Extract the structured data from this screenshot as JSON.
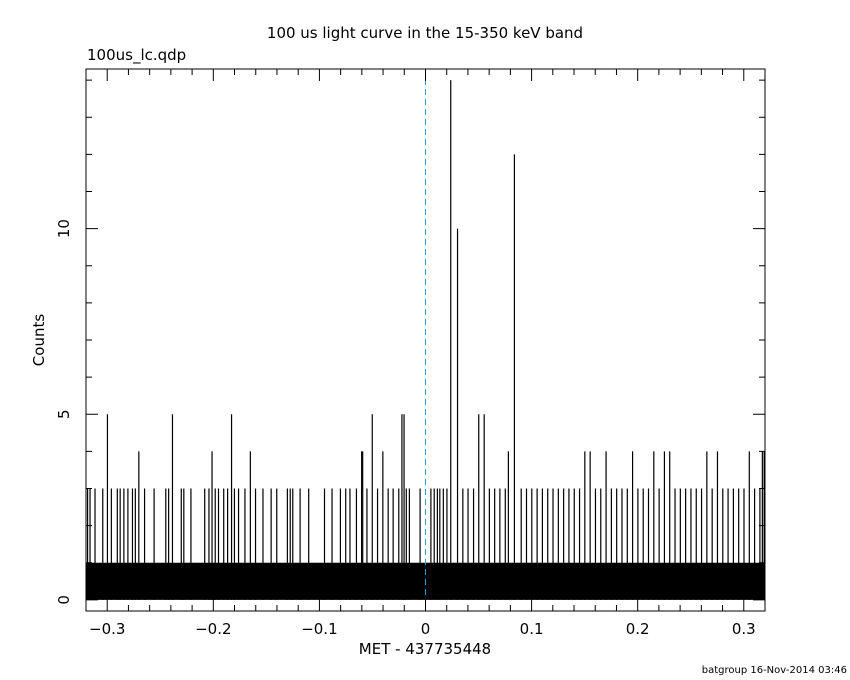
{
  "chart_data": {
    "type": "bar",
    "title": "100 us light curve in the 15-350 keV band",
    "file_label": "100us_lc.qdp",
    "xlabel": "MET - 437735448",
    "ylabel": "Counts",
    "footer": "batgroup 16-Nov-2014 03:46",
    "xlim": [
      -0.32,
      0.32
    ],
    "ylim": [
      -0.3,
      14.3
    ],
    "bin_width": 0.0001,
    "x_ticks": [
      {
        "value": -0.3,
        "label": "−0.3"
      },
      {
        "value": -0.2,
        "label": "−0.2"
      },
      {
        "value": -0.1,
        "label": "−0.1"
      },
      {
        "value": 0,
        "label": "0"
      },
      {
        "value": 0.1,
        "label": "0.1"
      },
      {
        "value": 0.2,
        "label": "0.2"
      },
      {
        "value": 0.3,
        "label": "0.3"
      }
    ],
    "y_ticks": [
      {
        "value": 0,
        "label": "0"
      },
      {
        "value": 5,
        "label": "5"
      },
      {
        "value": 10,
        "label": "10"
      }
    ],
    "reference_line": {
      "x": 0,
      "style": "dashed",
      "color": "#2a9fd6"
    },
    "baseline_counts": 1,
    "series": [
      {
        "points": [
          {
            "x": -0.3185,
            "y": 3
          },
          {
            "x": -0.3162,
            "y": 3
          },
          {
            "x": -0.3115,
            "y": 3
          },
          {
            "x": -0.3042,
            "y": 3
          },
          {
            "x": -0.2998,
            "y": 5
          },
          {
            "x": -0.2961,
            "y": 3
          },
          {
            "x": -0.2905,
            "y": 3
          },
          {
            "x": -0.2878,
            "y": 3
          },
          {
            "x": -0.2843,
            "y": 3
          },
          {
            "x": -0.2805,
            "y": 3
          },
          {
            "x": -0.2762,
            "y": 3
          },
          {
            "x": -0.2735,
            "y": 3
          },
          {
            "x": -0.2702,
            "y": 4
          },
          {
            "x": -0.2648,
            "y": 3
          },
          {
            "x": -0.2558,
            "y": 3
          },
          {
            "x": -0.2448,
            "y": 3
          },
          {
            "x": -0.2421,
            "y": 3
          },
          {
            "x": -0.2385,
            "y": 5
          },
          {
            "x": -0.2302,
            "y": 3
          },
          {
            "x": -0.2278,
            "y": 3
          },
          {
            "x": -0.2211,
            "y": 3
          },
          {
            "x": -0.2081,
            "y": 3
          },
          {
            "x": -0.2041,
            "y": 3
          },
          {
            "x": -0.2012,
            "y": 4
          },
          {
            "x": -0.1982,
            "y": 3
          },
          {
            "x": -0.1951,
            "y": 3
          },
          {
            "x": -0.1902,
            "y": 3
          },
          {
            "x": -0.1865,
            "y": 3
          },
          {
            "x": -0.1828,
            "y": 5
          },
          {
            "x": -0.1801,
            "y": 3
          },
          {
            "x": -0.1762,
            "y": 3
          },
          {
            "x": -0.1702,
            "y": 3
          },
          {
            "x": -0.1651,
            "y": 4
          },
          {
            "x": -0.1602,
            "y": 3
          },
          {
            "x": -0.1532,
            "y": 3
          },
          {
            "x": -0.1455,
            "y": 3
          },
          {
            "x": -0.1402,
            "y": 3
          },
          {
            "x": -0.1302,
            "y": 3
          },
          {
            "x": -0.1275,
            "y": 3
          },
          {
            "x": -0.1251,
            "y": 3
          },
          {
            "x": -0.1182,
            "y": 3
          },
          {
            "x": -0.1101,
            "y": 3
          },
          {
            "x": -0.0952,
            "y": 3
          },
          {
            "x": -0.0881,
            "y": 3
          },
          {
            "x": -0.0802,
            "y": 3
          },
          {
            "x": -0.0752,
            "y": 3
          },
          {
            "x": -0.0712,
            "y": 3
          },
          {
            "x": -0.0651,
            "y": 3
          },
          {
            "x": -0.0602,
            "y": 4
          },
          {
            "x": -0.0592,
            "y": 4
          },
          {
            "x": -0.0552,
            "y": 3
          },
          {
            "x": -0.0502,
            "y": 5
          },
          {
            "x": -0.0452,
            "y": 3
          },
          {
            "x": -0.0402,
            "y": 4
          },
          {
            "x": -0.0352,
            "y": 3
          },
          {
            "x": -0.0305,
            "y": 3
          },
          {
            "x": -0.0252,
            "y": 3
          },
          {
            "x": -0.0222,
            "y": 5
          },
          {
            "x": -0.0202,
            "y": 5
          },
          {
            "x": -0.0181,
            "y": 3
          },
          {
            "x": -0.0152,
            "y": 3
          },
          {
            "x": -0.0051,
            "y": 3
          },
          {
            "x": 0.0051,
            "y": 3
          },
          {
            "x": 0.0082,
            "y": 3
          },
          {
            "x": 0.0112,
            "y": 3
          },
          {
            "x": 0.0135,
            "y": 3
          },
          {
            "x": 0.0168,
            "y": 3
          },
          {
            "x": 0.0202,
            "y": 3
          },
          {
            "x": 0.0238,
            "y": 14
          },
          {
            "x": 0.0302,
            "y": 10
          },
          {
            "x": 0.0352,
            "y": 3
          },
          {
            "x": 0.0401,
            "y": 3
          },
          {
            "x": 0.0453,
            "y": 3
          },
          {
            "x": 0.0502,
            "y": 5
          },
          {
            "x": 0.0553,
            "y": 5
          },
          {
            "x": 0.0602,
            "y": 3
          },
          {
            "x": 0.0652,
            "y": 3
          },
          {
            "x": 0.0701,
            "y": 3
          },
          {
            "x": 0.0752,
            "y": 3
          },
          {
            "x": 0.0781,
            "y": 4
          },
          {
            "x": 0.0838,
            "y": 12
          },
          {
            "x": 0.0902,
            "y": 3
          },
          {
            "x": 0.0952,
            "y": 3
          },
          {
            "x": 0.1002,
            "y": 3
          },
          {
            "x": 0.1052,
            "y": 3
          },
          {
            "x": 0.1102,
            "y": 3
          },
          {
            "x": 0.1152,
            "y": 3
          },
          {
            "x": 0.1202,
            "y": 3
          },
          {
            "x": 0.1252,
            "y": 3
          },
          {
            "x": 0.1302,
            "y": 3
          },
          {
            "x": 0.1352,
            "y": 3
          },
          {
            "x": 0.1402,
            "y": 3
          },
          {
            "x": 0.1452,
            "y": 3
          },
          {
            "x": 0.1502,
            "y": 4
          },
          {
            "x": 0.1552,
            "y": 4
          },
          {
            "x": 0.1602,
            "y": 3
          },
          {
            "x": 0.1652,
            "y": 3
          },
          {
            "x": 0.1702,
            "y": 4
          },
          {
            "x": 0.1752,
            "y": 3
          },
          {
            "x": 0.1802,
            "y": 3
          },
          {
            "x": 0.1852,
            "y": 3
          },
          {
            "x": 0.1902,
            "y": 3
          },
          {
            "x": 0.1952,
            "y": 4
          },
          {
            "x": 0.2002,
            "y": 3
          },
          {
            "x": 0.2052,
            "y": 3
          },
          {
            "x": 0.2102,
            "y": 3
          },
          {
            "x": 0.2152,
            "y": 4
          },
          {
            "x": 0.2202,
            "y": 3
          },
          {
            "x": 0.2252,
            "y": 4
          },
          {
            "x": 0.2302,
            "y": 4
          },
          {
            "x": 0.2352,
            "y": 3
          },
          {
            "x": 0.2402,
            "y": 3
          },
          {
            "x": 0.2452,
            "y": 3
          },
          {
            "x": 0.2502,
            "y": 3
          },
          {
            "x": 0.2552,
            "y": 3
          },
          {
            "x": 0.2602,
            "y": 3
          },
          {
            "x": 0.2652,
            "y": 4
          },
          {
            "x": 0.2702,
            "y": 3
          },
          {
            "x": 0.2752,
            "y": 4
          },
          {
            "x": 0.2802,
            "y": 3
          },
          {
            "x": 0.2852,
            "y": 3
          },
          {
            "x": 0.2902,
            "y": 3
          },
          {
            "x": 0.2952,
            "y": 3
          },
          {
            "x": 0.3002,
            "y": 3
          },
          {
            "x": 0.3052,
            "y": 4
          },
          {
            "x": 0.3102,
            "y": 3
          },
          {
            "x": 0.3152,
            "y": 3
          },
          {
            "x": 0.3175,
            "y": 4
          },
          {
            "x": 0.3192,
            "y": 4
          }
        ]
      }
    ]
  }
}
